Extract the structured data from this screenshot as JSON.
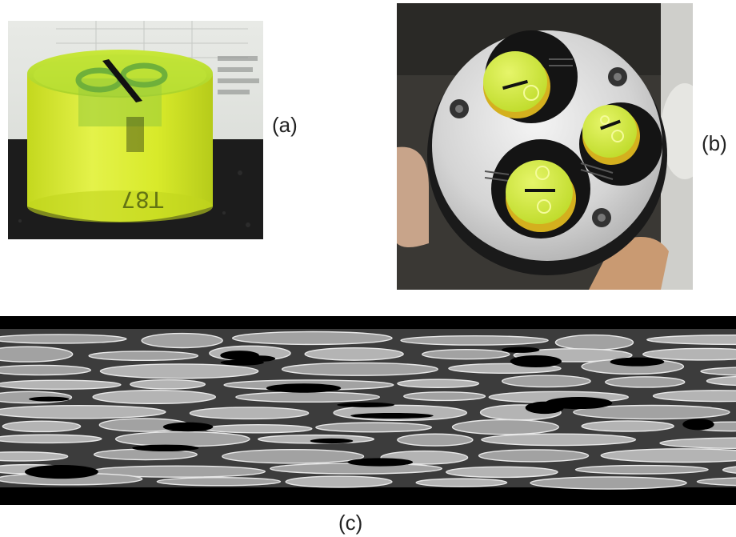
{
  "figure": {
    "panels": [
      {
        "id": "a",
        "caption": "(a)",
        "content": "photo"
      },
      {
        "id": "b",
        "caption": "(b)",
        "content": "photo"
      },
      {
        "id": "c",
        "caption": "(c)",
        "content": "micrograph"
      }
    ],
    "sample_marking": "T87",
    "colors": {
      "resin_yellow": "#d8ea2a",
      "resin_green": "#b8e038",
      "steel": "#dcdcdc",
      "holder_black": "#1a1a1a",
      "micrograph_fiber": "#b8b8b8",
      "micrograph_void": "#000000"
    }
  }
}
